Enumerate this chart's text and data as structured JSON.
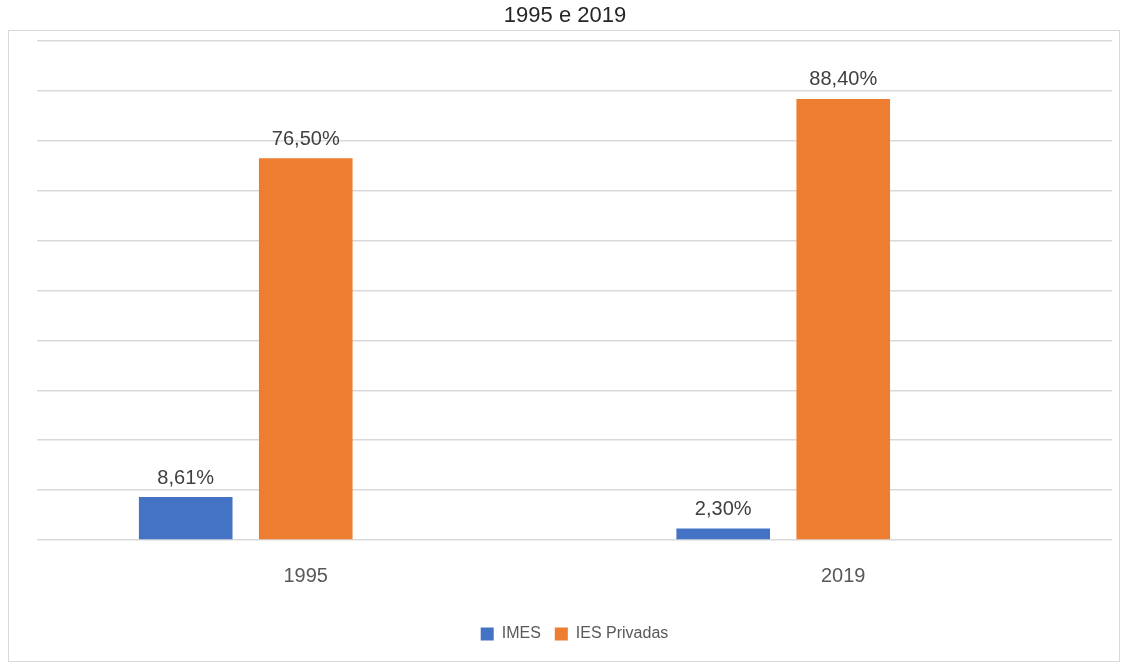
{
  "chart_data": {
    "type": "bar",
    "title": "1995 e 2019",
    "categories": [
      "1995",
      "2019"
    ],
    "series": [
      {
        "name": "IMES",
        "color": "#4472c4",
        "values": [
          8.61,
          2.3
        ],
        "value_labels": [
          "8,61%",
          "2,30%"
        ]
      },
      {
        "name": "IES Privadas",
        "color": "#ed7d31",
        "values": [
          76.5,
          88.4
        ],
        "value_labels": [
          "76,50%",
          "88,40%"
        ]
      }
    ],
    "ylim": [
      0,
      100
    ],
    "yticks": [
      {
        "value": 0,
        "label": null
      },
      {
        "value": 10,
        "label": null
      },
      {
        "value": 20,
        "label": null
      },
      {
        "value": 30,
        "label": null
      },
      {
        "value": 40,
        "label": null
      },
      {
        "value": 50,
        "label": null
      },
      {
        "value": 60,
        "label": null
      },
      {
        "value": 70,
        "label": null
      },
      {
        "value": 80,
        "label": null
      },
      {
        "value": 90,
        "label": null
      },
      {
        "value": 100,
        "label": null
      }
    ],
    "tick_labels": "x",
    "grid": "y",
    "legend": "bottom"
  }
}
